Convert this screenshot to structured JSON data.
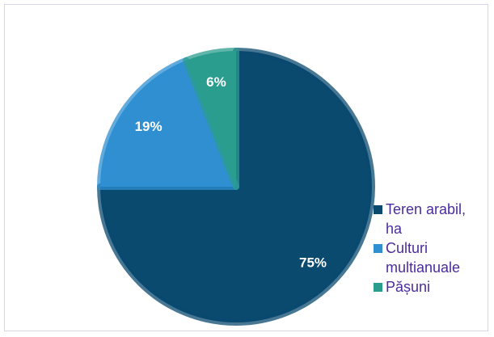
{
  "chart_data": {
    "type": "pie",
    "categories": [
      "Teren arabil, ha",
      "Culturi multianuale",
      "Pășuni"
    ],
    "values": [
      75,
      19,
      6
    ],
    "value_labels": [
      "75%",
      "19%",
      "6%"
    ],
    "colors": [
      "#0b4a6f",
      "#2f8fd1",
      "#2b9d8e"
    ],
    "legend": "right"
  }
}
